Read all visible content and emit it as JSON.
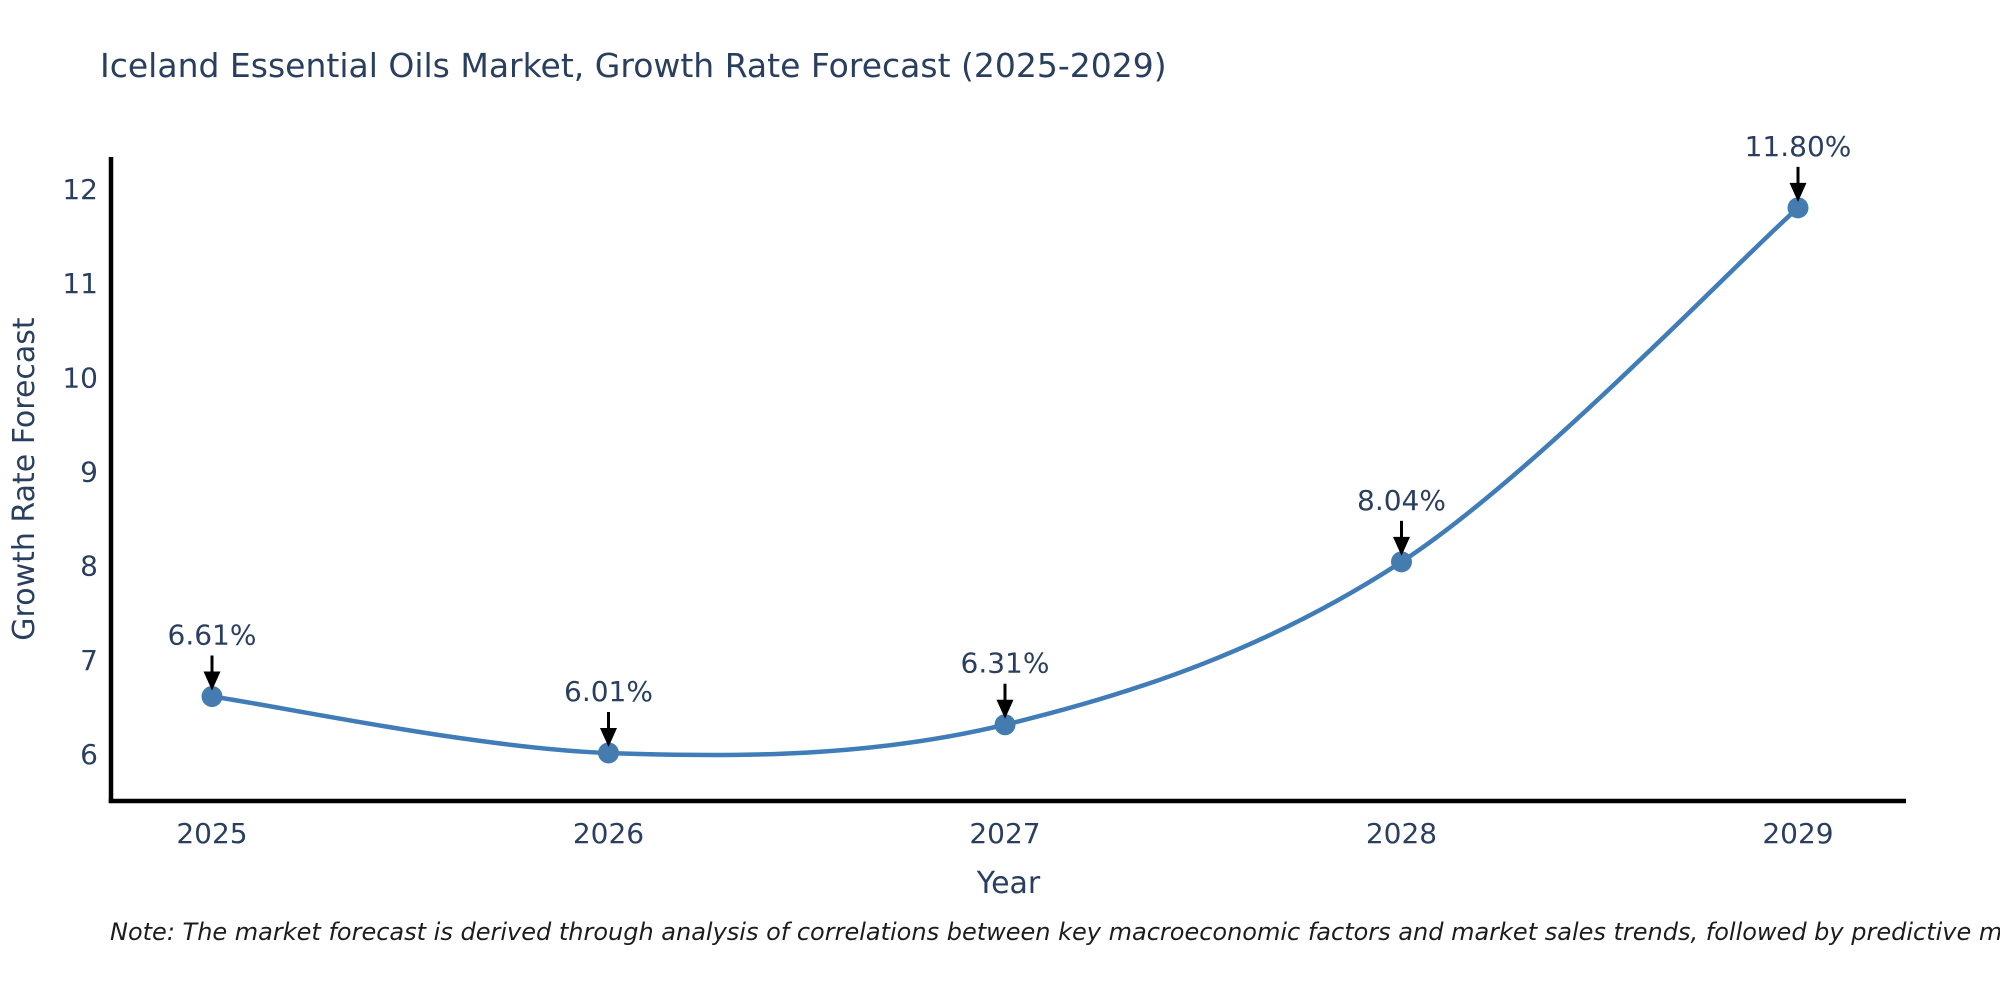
{
  "title": {
    "text": "Iceland Essential Oils Market, Growth Rate Forecast (2025-2029)",
    "color": "#2a3f5f"
  },
  "note": {
    "text": "Note: The market forecast is derived through analysis of correlations between key macroeconomic factors and market sales trends, followed by predictive modeling to project future sales"
  },
  "chart_data": {
    "type": "line",
    "title": "Iceland Essential Oils Market, Growth Rate Forecast (2025-2029)",
    "categories": [
      "2025",
      "2026",
      "2027",
      "2028",
      "2029"
    ],
    "series": [
      {
        "name": "Growth Rate Forecast",
        "values": [
          6.61,
          6.01,
          6.31,
          8.04,
          11.8
        ]
      }
    ],
    "point_labels": [
      "6.61%",
      "6.01%",
      "6.31%",
      "8.04%",
      "11.80%"
    ],
    "xlabel": "Year",
    "ylabel": "Growth Rate Forecast",
    "yticks": [
      6,
      7,
      8,
      9,
      10,
      11,
      12
    ],
    "ylim": [
      5.5,
      12.34
    ],
    "grid": false,
    "legend_position": "none",
    "smooth": true,
    "colors": {
      "line": "#3f7cb8",
      "marker": "#447cb0",
      "axis": "#000000",
      "tick_label": "#2a3f5f",
      "axis_title": "#2a3f5f",
      "annotation_text": "#2a3f5f",
      "annotation_arrow": "#000000"
    }
  }
}
